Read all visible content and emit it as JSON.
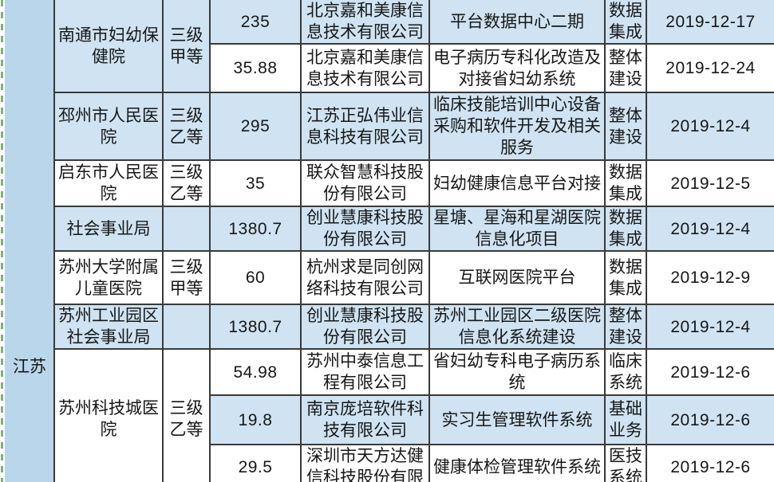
{
  "province": {
    "label": "江苏"
  },
  "colors": {
    "row_alt_blue": "#cfe3f2",
    "row_white": "#ffffff",
    "province_blue": "#b9d6eb",
    "border_dark": "#3a3a3a",
    "margin_dash_green": "#86ab80",
    "text": "#171717"
  },
  "table": {
    "columns": [
      "province",
      "hospital",
      "grade",
      "amount",
      "company",
      "project",
      "type",
      "date"
    ],
    "rows": [
      {
        "bg": "row_alt_blue",
        "hospital": "南通市妇幼保\n健院",
        "hospital_rowspan": 2,
        "grade": "三级\n甲等",
        "grade_rowspan": 2,
        "amount": "235",
        "company": "北京嘉和美康信\n息技术有限公司",
        "project": "平台数据中心二期",
        "type": "数据\n集成",
        "date": "2019-12-17"
      },
      {
        "bg": "row_white",
        "amount": "35.88",
        "company": "北京嘉和美康信\n息技术有限公司",
        "project": "电子病历专科化改造及\n对接省妇幼系统",
        "type": "整体\n建设",
        "date": "2019-12-24"
      },
      {
        "bg": "row_alt_blue",
        "hospital": "邳州市人民医\n院",
        "grade": "三级\n乙等",
        "amount": "295",
        "company": "江苏正弘伟业信\n息科技有限公司",
        "project": "临床技能培训中心设备\n采购和软件开发及相关\n服务",
        "type": "整体\n建设",
        "date": "2019-12-4"
      },
      {
        "bg": "row_white",
        "hospital": "启东市人民医\n院",
        "grade": "三级\n乙等",
        "amount": "35",
        "company": "联众智慧科技股\n份有限公司",
        "project": "妇幼健康信息平台对接",
        "type": "数据\n集成",
        "date": "2019-12-5"
      },
      {
        "bg": "row_alt_blue",
        "hospital": "社会事业局",
        "grade": "",
        "amount": "1380.7",
        "company": "创业慧康科技股\n份有限公司",
        "project": "星塘、星海和星湖医院\n信息化项目",
        "type": "数据\n集成",
        "date": "2019-12-4"
      },
      {
        "bg": "row_white",
        "hospital": "苏州大学附属\n儿童医院",
        "grade": "三级\n甲等",
        "amount": "60",
        "company": "杭州求是同创网\n络科技有限公司",
        "project": "互联网医院平台",
        "type": "数据\n集成",
        "date": "2019-12-9"
      },
      {
        "bg": "row_alt_blue",
        "hospital": "苏州工业园区\n社会事业局",
        "grade": "",
        "amount": "1380.7",
        "company": "创业慧康科技股\n份有限公司",
        "project": "苏州工业园区二级医院\n信息化系统建设",
        "type": "整体\n建设",
        "date": "2019-12-4"
      },
      {
        "bg": "row_white",
        "hospital": "苏州科技城医\n院",
        "hospital_rowspan": 3,
        "grade": "三级\n乙等",
        "grade_rowspan": 3,
        "amount": "54.98",
        "company": "苏州中泰信息工\n程有限公司",
        "project": "省妇幼专科电子病历系\n统",
        "type": "临床\n系统",
        "date": "2019-12-6"
      },
      {
        "bg": "row_alt_blue",
        "amount": "19.8",
        "company": "南京庞培软件科\n技有限公司",
        "project": "实习生管理软件系统",
        "type": "基础\n业务",
        "date": "2019-12-6"
      },
      {
        "bg": "row_white",
        "amount": "29.5",
        "company": "深圳市天方达健\n信科技股份有限",
        "project": "健康体检管理软件系统",
        "type": "医技\n系统",
        "date": "2019-12-6"
      }
    ]
  }
}
